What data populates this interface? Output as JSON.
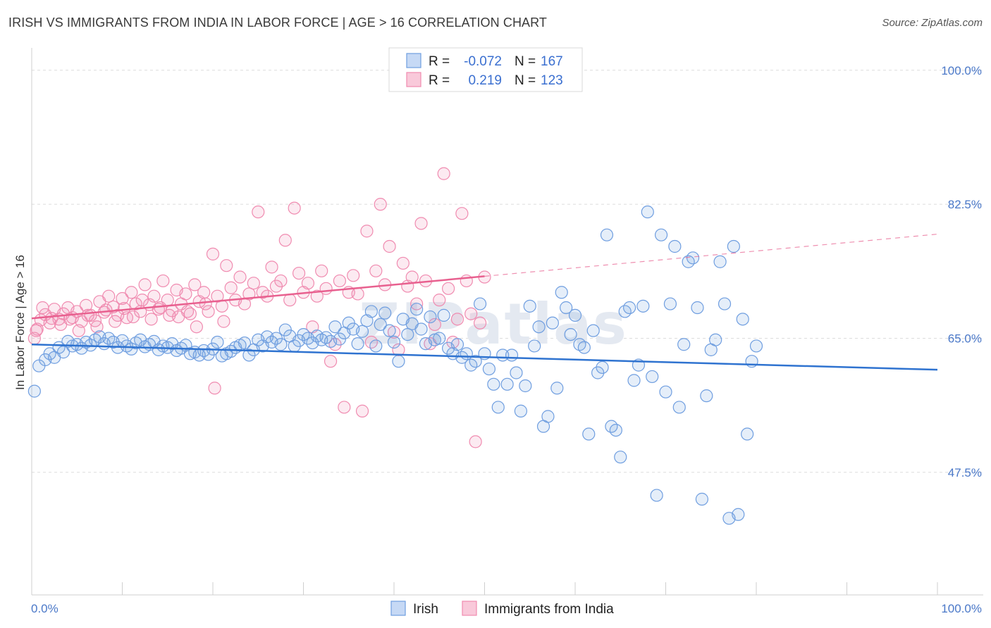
{
  "title": "IRISH VS IMMIGRANTS FROM INDIA IN LABOR FORCE | AGE > 16 CORRELATION CHART",
  "source": "Source: ZipAtlas.com",
  "watermark": "ZIPatlas",
  "colors": {
    "irish": "#6f9ee0",
    "irish_fill": "rgba(111,158,224,0.18)",
    "irish_line": "#2f73d0",
    "india": "#f08bb0",
    "india_fill": "rgba(240,139,176,0.18)",
    "india_line": "#e8608f"
  },
  "legend": {
    "rows": [
      {
        "r_label": "R =",
        "r_value": "-0.072",
        "n_label": "N =",
        "n_value": "167"
      },
      {
        "r_label": "R =",
        "r_value": "0.219",
        "n_label": "N =",
        "n_value": "123"
      }
    ]
  },
  "chart_data": {
    "type": "scatter",
    "ylabel": "In Labor Force | Age > 16",
    "xlim": [
      0,
      100
    ],
    "ylim": [
      31.5,
      102
    ],
    "x_tick_labels": [
      "0.0%",
      "100.0%"
    ],
    "y_ticks": [
      47.5,
      65.0,
      82.5,
      100.0
    ],
    "y_tick_labels": [
      "47.5%",
      "65.0%",
      "82.5%",
      "100.0%"
    ],
    "grid": true,
    "legend_placement": "top-center",
    "series": [
      {
        "name": "Irish",
        "trend": {
          "x": [
            0,
            100
          ],
          "y": [
            64.2,
            60.9
          ]
        },
        "points": [
          [
            0.3,
            58.1
          ],
          [
            0.8,
            61.4
          ],
          [
            1.5,
            62.2
          ],
          [
            2.0,
            63.0
          ],
          [
            2.5,
            62.5
          ],
          [
            3.0,
            63.8
          ],
          [
            3.5,
            63.2
          ],
          [
            4.0,
            64.6
          ],
          [
            4.5,
            64.0
          ],
          [
            5.0,
            64.2
          ],
          [
            5.5,
            63.7
          ],
          [
            6.0,
            64.5
          ],
          [
            6.5,
            64.1
          ],
          [
            7.0,
            64.8
          ],
          [
            7.5,
            65.2
          ],
          [
            8.0,
            64.3
          ],
          [
            8.5,
            65.0
          ],
          [
            9.0,
            64.5
          ],
          [
            9.5,
            63.8
          ],
          [
            10.0,
            64.7
          ],
          [
            10.5,
            64.0
          ],
          [
            11.0,
            63.6
          ],
          [
            11.5,
            64.4
          ],
          [
            12.0,
            64.8
          ],
          [
            12.5,
            63.9
          ],
          [
            13.0,
            64.2
          ],
          [
            13.5,
            64.6
          ],
          [
            14.0,
            63.5
          ],
          [
            14.5,
            64.0
          ],
          [
            15.0,
            63.8
          ],
          [
            15.5,
            64.3
          ],
          [
            16.0,
            63.4
          ],
          [
            16.5,
            63.7
          ],
          [
            17.0,
            64.1
          ],
          [
            17.5,
            63.0
          ],
          [
            18.0,
            63.2
          ],
          [
            18.5,
            62.8
          ],
          [
            19.0,
            63.4
          ],
          [
            19.5,
            62.9
          ],
          [
            20.0,
            63.6
          ],
          [
            20.5,
            64.5
          ],
          [
            21.0,
            62.7
          ],
          [
            21.5,
            63.0
          ],
          [
            22.0,
            63.3
          ],
          [
            22.5,
            63.8
          ],
          [
            23.0,
            64.1
          ],
          [
            23.5,
            64.4
          ],
          [
            24.0,
            62.8
          ],
          [
            24.5,
            63.5
          ],
          [
            25.0,
            64.8
          ],
          [
            25.5,
            64.0
          ],
          [
            26.0,
            65.2
          ],
          [
            26.5,
            64.5
          ],
          [
            27.0,
            65.0
          ],
          [
            27.5,
            64.2
          ],
          [
            28.0,
            66.1
          ],
          [
            28.5,
            65.3
          ],
          [
            29.0,
            64.0
          ],
          [
            29.5,
            64.7
          ],
          [
            30.0,
            65.5
          ],
          [
            30.5,
            65.0
          ],
          [
            31.0,
            64.4
          ],
          [
            31.5,
            65.3
          ],
          [
            32.0,
            64.8
          ],
          [
            32.5,
            65.1
          ],
          [
            33.0,
            64.6
          ],
          [
            33.5,
            66.5
          ],
          [
            34.0,
            64.9
          ],
          [
            34.5,
            65.7
          ],
          [
            35.0,
            67.0
          ],
          [
            35.5,
            66.2
          ],
          [
            36.0,
            64.3
          ],
          [
            36.5,
            65.9
          ],
          [
            37.0,
            67.3
          ],
          [
            37.5,
            68.5
          ],
          [
            38.0,
            64.0
          ],
          [
            38.5,
            66.8
          ],
          [
            39.0,
            68.3
          ],
          [
            39.5,
            66.0
          ],
          [
            40.0,
            64.5
          ],
          [
            40.5,
            62.0
          ],
          [
            41.0,
            67.5
          ],
          [
            41.5,
            65.5
          ],
          [
            42.0,
            66.9
          ],
          [
            42.5,
            68.8
          ],
          [
            43.0,
            66.2
          ],
          [
            43.5,
            64.3
          ],
          [
            44.0,
            67.8
          ],
          [
            44.5,
            64.8
          ],
          [
            45.0,
            65.0
          ],
          [
            45.5,
            68.0
          ],
          [
            46.0,
            63.7
          ],
          [
            46.5,
            63.0
          ],
          [
            47.0,
            64.2
          ],
          [
            47.5,
            62.5
          ],
          [
            48.0,
            63.0
          ],
          [
            48.5,
            61.5
          ],
          [
            49.0,
            62.0
          ],
          [
            49.5,
            69.5
          ],
          [
            50.0,
            63.0
          ],
          [
            50.5,
            61.0
          ],
          [
            51.0,
            59.0
          ],
          [
            51.5,
            56.0
          ],
          [
            52.0,
            62.8
          ],
          [
            52.5,
            59.0
          ],
          [
            53.0,
            62.8
          ],
          [
            53.5,
            60.5
          ],
          [
            54.0,
            55.5
          ],
          [
            54.5,
            58.8
          ],
          [
            55.0,
            69.2
          ],
          [
            55.5,
            64.0
          ],
          [
            56.0,
            66.5
          ],
          [
            56.5,
            53.5
          ],
          [
            57.0,
            54.8
          ],
          [
            57.5,
            67.0
          ],
          [
            58.0,
            58.5
          ],
          [
            58.5,
            71.0
          ],
          [
            59.0,
            69.0
          ],
          [
            59.5,
            65.5
          ],
          [
            60.0,
            68.0
          ],
          [
            60.5,
            64.2
          ],
          [
            61.0,
            63.8
          ],
          [
            61.5,
            52.5
          ],
          [
            62.0,
            66.0
          ],
          [
            62.5,
            60.5
          ],
          [
            63.0,
            61.2
          ],
          [
            63.5,
            78.5
          ],
          [
            64.0,
            53.5
          ],
          [
            64.5,
            53.0
          ],
          [
            65.0,
            49.5
          ],
          [
            65.5,
            68.5
          ],
          [
            66.0,
            69.0
          ],
          [
            66.5,
            59.5
          ],
          [
            67.0,
            61.5
          ],
          [
            67.5,
            69.2
          ],
          [
            68.0,
            81.5
          ],
          [
            68.5,
            60.0
          ],
          [
            69.0,
            44.5
          ],
          [
            69.5,
            78.5
          ],
          [
            70.0,
            58.0
          ],
          [
            70.5,
            69.5
          ],
          [
            71.0,
            77.0
          ],
          [
            71.5,
            56.0
          ],
          [
            72.0,
            64.2
          ],
          [
            72.5,
            75.0
          ],
          [
            73.0,
            75.5
          ],
          [
            73.5,
            69.0
          ],
          [
            74.0,
            44.0
          ],
          [
            74.5,
            57.5
          ],
          [
            75.0,
            63.5
          ],
          [
            75.5,
            64.8
          ],
          [
            76.0,
            75.0
          ],
          [
            76.5,
            69.5
          ],
          [
            77.0,
            41.5
          ],
          [
            77.5,
            77.0
          ],
          [
            78.0,
            42.0
          ],
          [
            78.5,
            67.5
          ],
          [
            79.0,
            52.5
          ],
          [
            79.5,
            62.0
          ],
          [
            80.0,
            64.0
          ]
        ]
      },
      {
        "name": "Immigrants from India",
        "trend": {
          "x": [
            0,
            50
          ],
          "y": [
            67.6,
            73.1
          ]
        },
        "trend_extension": {
          "x": [
            50,
            100
          ],
          "y": [
            73.1,
            78.6
          ]
        },
        "points": [
          [
            0.3,
            65.0
          ],
          [
            0.6,
            66.2
          ],
          [
            1.0,
            67.4
          ],
          [
            1.5,
            68.1
          ],
          [
            2.0,
            67.0
          ],
          [
            2.5,
            68.8
          ],
          [
            3.0,
            67.5
          ],
          [
            3.5,
            68.2
          ],
          [
            4.0,
            69.0
          ],
          [
            4.5,
            67.7
          ],
          [
            5.0,
            68.5
          ],
          [
            5.5,
            67.2
          ],
          [
            6.0,
            69.3
          ],
          [
            6.5,
            68.0
          ],
          [
            7.0,
            67.3
          ],
          [
            7.5,
            69.8
          ],
          [
            8.0,
            68.4
          ],
          [
            8.5,
            70.5
          ],
          [
            9.0,
            69.1
          ],
          [
            9.5,
            68.0
          ],
          [
            10.0,
            70.2
          ],
          [
            10.5,
            67.7
          ],
          [
            11.0,
            71.0
          ],
          [
            11.5,
            69.5
          ],
          [
            12.0,
            68.5
          ],
          [
            12.5,
            72.0
          ],
          [
            13.0,
            69.4
          ],
          [
            13.5,
            70.5
          ],
          [
            14.0,
            68.8
          ],
          [
            14.5,
            72.5
          ],
          [
            15.0,
            70.0
          ],
          [
            15.5,
            68.6
          ],
          [
            16.0,
            71.3
          ],
          [
            16.5,
            69.5
          ],
          [
            17.0,
            70.8
          ],
          [
            17.5,
            68.2
          ],
          [
            18.0,
            72.0
          ],
          [
            18.5,
            69.8
          ],
          [
            19.0,
            71.0
          ],
          [
            19.5,
            68.5
          ],
          [
            20.0,
            76.0
          ],
          [
            20.5,
            70.5
          ],
          [
            21.0,
            69.2
          ],
          [
            21.5,
            74.5
          ],
          [
            22.0,
            71.6
          ],
          [
            22.5,
            70.0
          ],
          [
            23.0,
            73.0
          ],
          [
            23.5,
            69.5
          ],
          [
            24.0,
            70.8
          ],
          [
            24.5,
            72.2
          ],
          [
            25.0,
            81.5
          ],
          [
            25.5,
            71.0
          ],
          [
            26.0,
            70.5
          ],
          [
            26.5,
            74.3
          ],
          [
            27.0,
            71.8
          ],
          [
            27.5,
            72.5
          ],
          [
            28.0,
            77.8
          ],
          [
            28.5,
            70.0
          ],
          [
            29.0,
            82.0
          ],
          [
            29.5,
            73.5
          ],
          [
            30.0,
            71.0
          ],
          [
            30.5,
            72.2
          ],
          [
            31.0,
            66.5
          ],
          [
            31.5,
            70.5
          ],
          [
            32.0,
            73.8
          ],
          [
            32.5,
            71.5
          ],
          [
            33.0,
            62.0
          ],
          [
            33.5,
            64.2
          ],
          [
            34.0,
            72.5
          ],
          [
            34.5,
            56.0
          ],
          [
            35.0,
            71.0
          ],
          [
            35.5,
            73.2
          ],
          [
            36.0,
            70.8
          ],
          [
            36.5,
            55.5
          ],
          [
            37.0,
            79.0
          ],
          [
            37.5,
            64.5
          ],
          [
            38.0,
            73.8
          ],
          [
            38.5,
            82.5
          ],
          [
            39.0,
            72.0
          ],
          [
            39.5,
            77.0
          ],
          [
            40.0,
            65.8
          ],
          [
            40.5,
            63.5
          ],
          [
            41.0,
            74.8
          ],
          [
            41.5,
            71.8
          ],
          [
            42.0,
            73.0
          ],
          [
            42.5,
            69.5
          ],
          [
            43.0,
            80.0
          ],
          [
            43.5,
            72.5
          ],
          [
            44.0,
            64.3
          ],
          [
            44.5,
            66.8
          ],
          [
            45.0,
            70.0
          ],
          [
            45.5,
            86.5
          ],
          [
            46.0,
            71.5
          ],
          [
            46.5,
            64.5
          ],
          [
            47.0,
            67.5
          ],
          [
            47.5,
            81.3
          ],
          [
            48.0,
            72.5
          ],
          [
            48.5,
            68.2
          ],
          [
            49.0,
            51.5
          ],
          [
            49.5,
            67.0
          ],
          [
            50.0,
            73.0
          ],
          [
            0.5,
            66.0
          ],
          [
            1.2,
            69.0
          ],
          [
            2.2,
            67.6
          ],
          [
            3.2,
            66.8
          ],
          [
            4.2,
            67.5
          ],
          [
            5.2,
            66.0
          ],
          [
            6.2,
            68.0
          ],
          [
            7.2,
            66.5
          ],
          [
            8.2,
            68.7
          ],
          [
            9.2,
            67.2
          ],
          [
            10.2,
            68.9
          ],
          [
            11.2,
            67.8
          ],
          [
            12.2,
            70.0
          ],
          [
            13.2,
            67.5
          ],
          [
            14.2,
            69.0
          ],
          [
            15.2,
            68.0
          ],
          [
            16.2,
            67.8
          ],
          [
            17.2,
            68.5
          ],
          [
            18.2,
            66.5
          ],
          [
            19.2,
            69.5
          ],
          [
            20.2,
            58.5
          ],
          [
            21.2,
            67.2
          ]
        ]
      }
    ]
  },
  "bottom_legend": [
    "Irish",
    "Immigrants from India"
  ]
}
